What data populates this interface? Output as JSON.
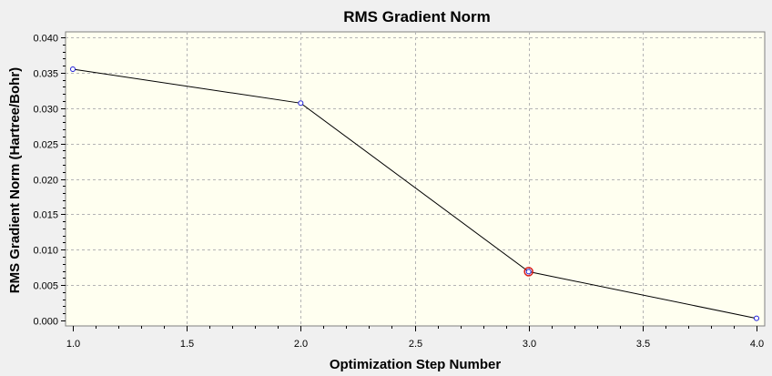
{
  "colors": {
    "background": "#f0f0f0",
    "plot_background": "#fffff0",
    "grid": "#b4b4b4",
    "line": "#000000",
    "point": "#1c1cd8",
    "highlight": "#d81c1c"
  },
  "chart_data": {
    "type": "line",
    "title": "RMS Gradient Norm",
    "xlabel": "Optimization Step Number",
    "ylabel": "RMS Gradient Norm (Hartree/Bohr)",
    "xlim": [
      1.0,
      4.0
    ],
    "ylim": [
      0.0,
      0.04
    ],
    "xticks": [
      "1.0",
      "1.5",
      "2.0",
      "2.5",
      "3.0",
      "3.5",
      "4.0"
    ],
    "yticks": [
      "0.000",
      "0.005",
      "0.010",
      "0.015",
      "0.020",
      "0.025",
      "0.030",
      "0.035",
      "0.040"
    ],
    "grid": true,
    "highlighted_x": 3,
    "series": [
      {
        "x": [
          1,
          2,
          3,
          4
        ],
        "values": [
          0.0355,
          0.0307,
          0.0069,
          0.0003
        ]
      }
    ]
  }
}
